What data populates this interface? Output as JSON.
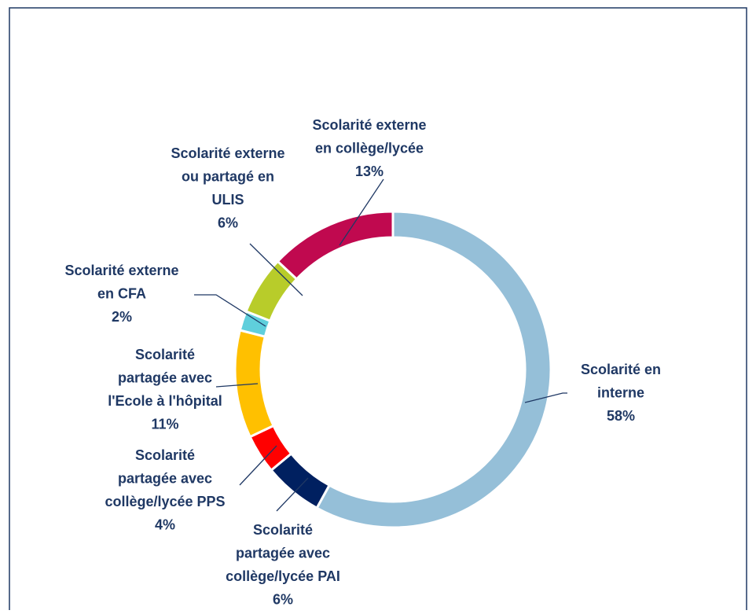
{
  "chart_data": {
    "type": "donut",
    "categories": [
      [
        "Scolarité en",
        "interne"
      ],
      [
        "Scolarité",
        "partagée avec",
        "collège/lycée PAI"
      ],
      [
        "Scolarité",
        "partagée avec",
        "collège/lycée PPS"
      ],
      [
        "Scolarité",
        "partagée avec",
        "l'Ecole à l'hôpital"
      ],
      [
        "Scolarité externe",
        "en CFA"
      ],
      [
        "Scolarité externe",
        "ou partagé en",
        "ULIS"
      ],
      [
        "Scolarité externe",
        "en collège/lycée"
      ]
    ],
    "values": [
      58,
      6,
      4,
      11,
      2,
      6,
      13
    ],
    "value_labels": [
      "58%",
      "6%",
      "4%",
      "11%",
      "2%",
      "6%",
      "13%"
    ],
    "colors": [
      "#95bfd8",
      "#002060",
      "#ff0000",
      "#ffc000",
      "#5fcfdc",
      "#b8cc2a",
      "#c0094f"
    ]
  }
}
